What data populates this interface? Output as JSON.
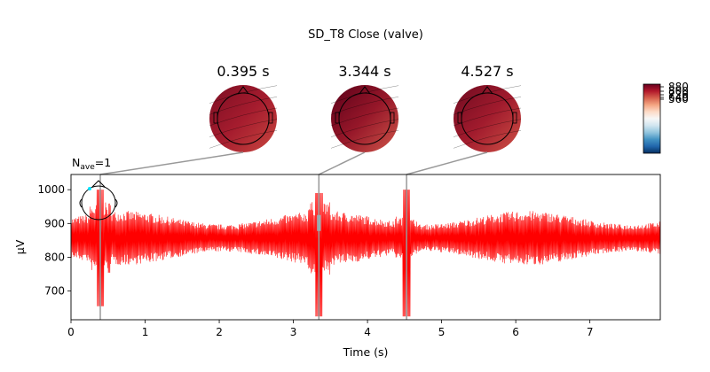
{
  "figure": {
    "title": "SD_T8 Close (valve)",
    "nave_label": "N",
    "nave_sub": "ave",
    "nave_value": "=1"
  },
  "chart_data": {
    "type": "line",
    "title": "SD_T8 Close (valve)",
    "xlabel": "Time (s)",
    "ylabel": "µV",
    "xlim": [
      0,
      7.95
    ],
    "ylim": [
      615,
      1045
    ],
    "x_ticks": [
      "0",
      "1",
      "2",
      "3",
      "4",
      "5",
      "6",
      "7"
    ],
    "y_ticks": [
      "700",
      "800",
      "900",
      "1000"
    ],
    "series": [
      {
        "color": "#ff0000",
        "baseline": 857,
        "amplitude": 70,
        "dips": [
          {
            "t": 0.395,
            "min": 655,
            "max": 1000
          },
          {
            "t": 3.344,
            "min": 625,
            "max": 990
          },
          {
            "t": 4.527,
            "min": 625,
            "max": 1000
          }
        ]
      }
    ],
    "topomap_times": [
      {
        "label": "0.395 s",
        "t": 0.395
      },
      {
        "label": "3.344 s",
        "t": 3.344
      },
      {
        "label": "4.527 s",
        "t": 4.527
      }
    ],
    "colorbar": {
      "tick_labels": [
        "880",
        "800",
        "720",
        "640",
        "560"
      ],
      "colors": [
        "#67001f",
        "#b2182b",
        "#d6604d",
        "#f4a582",
        "#fddbc7",
        "#f7f7f7",
        "#d1e5f0",
        "#92c5de",
        "#4393c3",
        "#2166ac",
        "#053061"
      ]
    },
    "grid": false
  }
}
